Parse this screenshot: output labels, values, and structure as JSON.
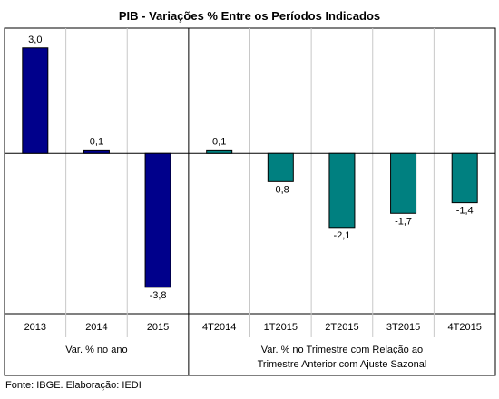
{
  "chart_data": {
    "type": "bar",
    "title": "PIB - Variações % Entre os Períodos Indicados",
    "categories": [
      "2013",
      "2014",
      "2015",
      "4T2014",
      "1T2015",
      "2T2015",
      "3T2015",
      "4T2015"
    ],
    "value_labels": [
      "3,0",
      "0,1",
      "-3,8",
      "0,1",
      "-0,8",
      "-2,1",
      "-1,7",
      "-1,4"
    ],
    "series": [
      {
        "values": [
          3.0,
          0.1,
          -3.8,
          null,
          null,
          null,
          null,
          null
        ],
        "color": "#00008B"
      },
      {
        "values": [
          null,
          null,
          null,
          0.1,
          -0.8,
          -2.1,
          -1.7,
          -1.4
        ],
        "color": "#008080"
      }
    ],
    "ylim": [
      -4.5,
      3.2
    ],
    "grid": false,
    "legend": "none",
    "group_labels": [
      {
        "text": "Var. % no ano",
        "categories": [
          0,
          2
        ]
      },
      {
        "text": "Var. % no Trimestre com Relação ao",
        "text2": "Trimestre Anterior com Ajuste Sazonal",
        "categories": [
          3,
          7
        ]
      }
    ]
  },
  "source_note": "Fonte: IBGE. Elaboração: IEDI"
}
